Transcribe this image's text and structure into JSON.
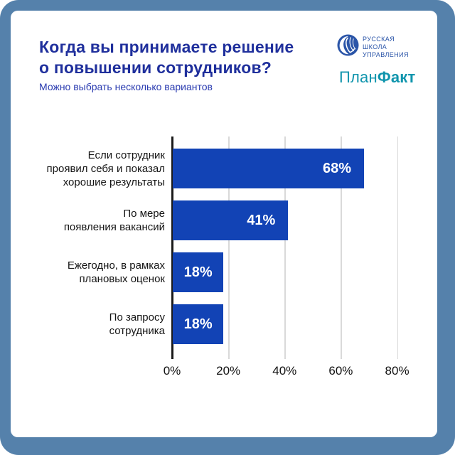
{
  "header": {
    "title_lines": [
      "Когда вы принимаете решение",
      "о повышении сотрудников?"
    ],
    "subtitle": "Можно выбрать несколько вариантов"
  },
  "logos": {
    "rshu_lines": [
      "РУССКАЯ",
      "ШКОЛА",
      "УПРАВЛЕНИЯ"
    ],
    "planfakt_part1": "План",
    "planfakt_part2": "Факт"
  },
  "colors": {
    "frame": "#5581ab",
    "card": "#ffffff",
    "title": "#1f2f9c",
    "subtitle": "#2a3bb0",
    "bar": "#1243b5",
    "bar_label": "#ffffff",
    "grid": "#d9d9d9",
    "axis": "#1a1a1a",
    "category_label": "#141414",
    "rshu_blue": "#2b55a8",
    "planfakt_teal": "#1095ad"
  },
  "chart_data": {
    "type": "bar",
    "orientation": "horizontal",
    "title": "Когда вы принимаете решение о повышении сотрудников?",
    "subtitle": "Можно выбрать несколько вариантов",
    "categories": [
      "Если сотрудник проявил себя и показал хорошие результаты",
      "По мере появления вакансий",
      "Ежегодно, в рамках плановых оценок",
      "По запросу сотрудника"
    ],
    "category_lines": [
      [
        "Если сотрудник",
        "проявил себя и показал",
        "хорошие результаты"
      ],
      [
        "По мере",
        "появления вакансий"
      ],
      [
        "Ежегодно, в рамках",
        "плановых оценок"
      ],
      [
        "По запросу",
        "сотрудника"
      ]
    ],
    "values": [
      68,
      41,
      18,
      18
    ],
    "value_labels": [
      "68%",
      "41%",
      "18%",
      "18%"
    ],
    "x_ticks": [
      {
        "value": 0,
        "label": "0%"
      },
      {
        "value": 20,
        "label": "20%"
      },
      {
        "value": 40,
        "label": "40%"
      },
      {
        "value": 60,
        "label": "60%"
      },
      {
        "value": 80,
        "label": "80%"
      }
    ],
    "xlim": [
      0,
      93
    ],
    "grid": true,
    "legend_position": "none"
  }
}
